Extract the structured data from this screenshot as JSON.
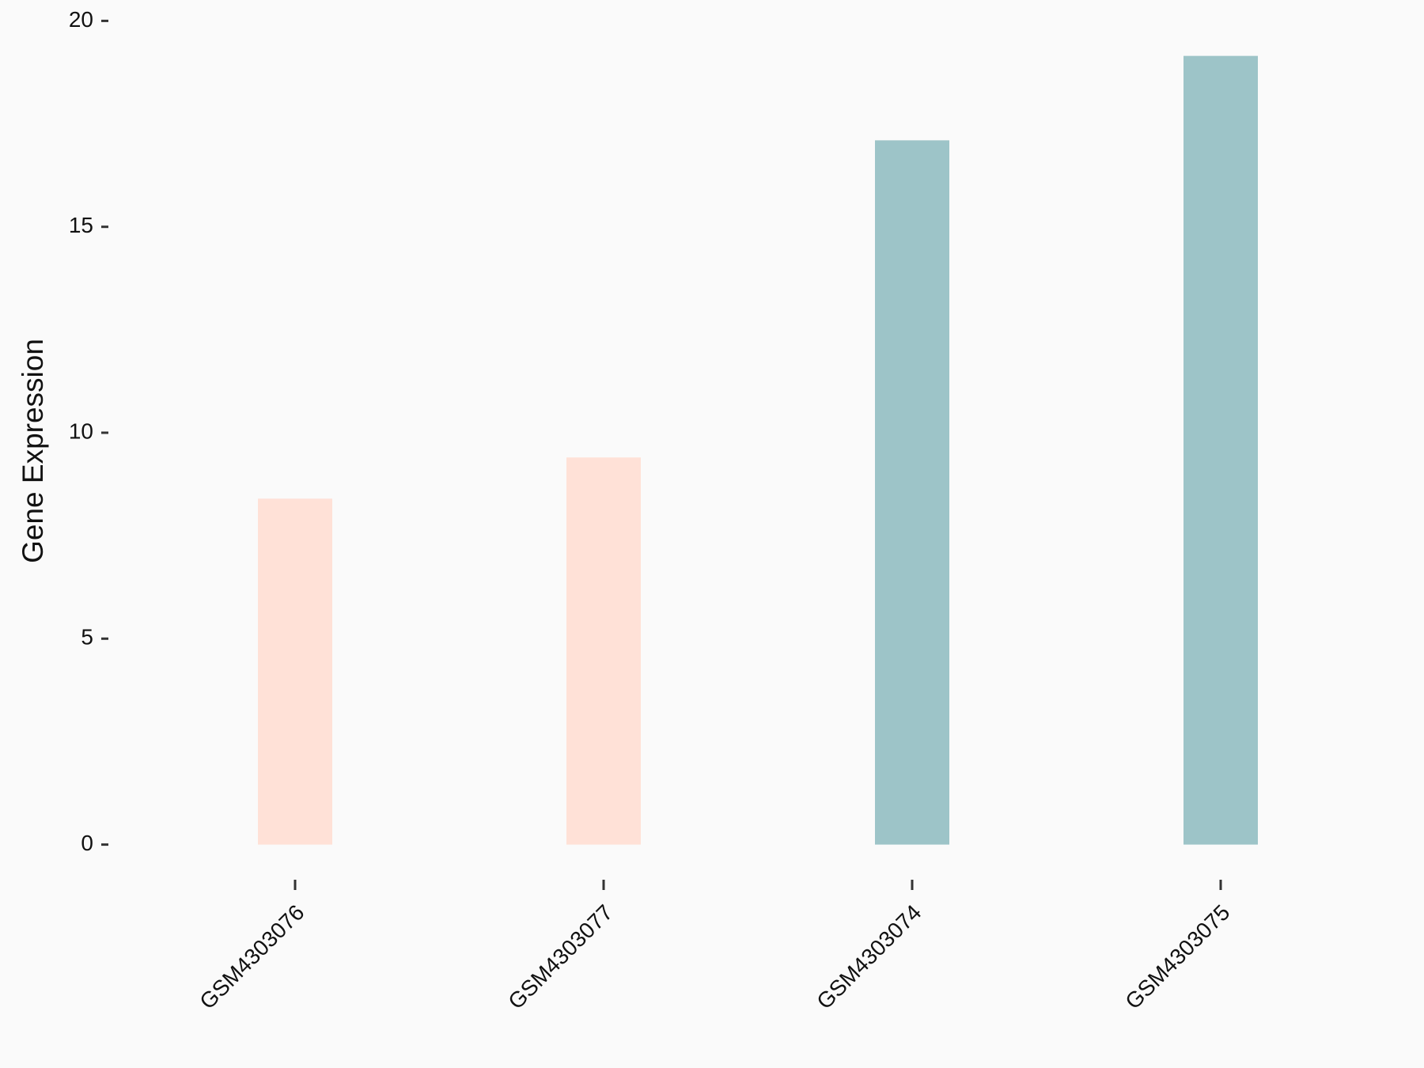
{
  "chart_data": {
    "type": "bar",
    "y_label": "Gene Expression",
    "categories": [
      "GSM4303076",
      "GSM4303077",
      "GSM4303074",
      "GSM4303075"
    ],
    "values": [
      8.4,
      9.4,
      17.1,
      19.15
    ],
    "colors": [
      "#ffe1d7",
      "#ffe1d7",
      "#9dc4c8",
      "#9dc4c8"
    ],
    "ylim": [
      0,
      20
    ],
    "yticks": [
      0,
      5,
      10,
      15,
      20
    ]
  }
}
